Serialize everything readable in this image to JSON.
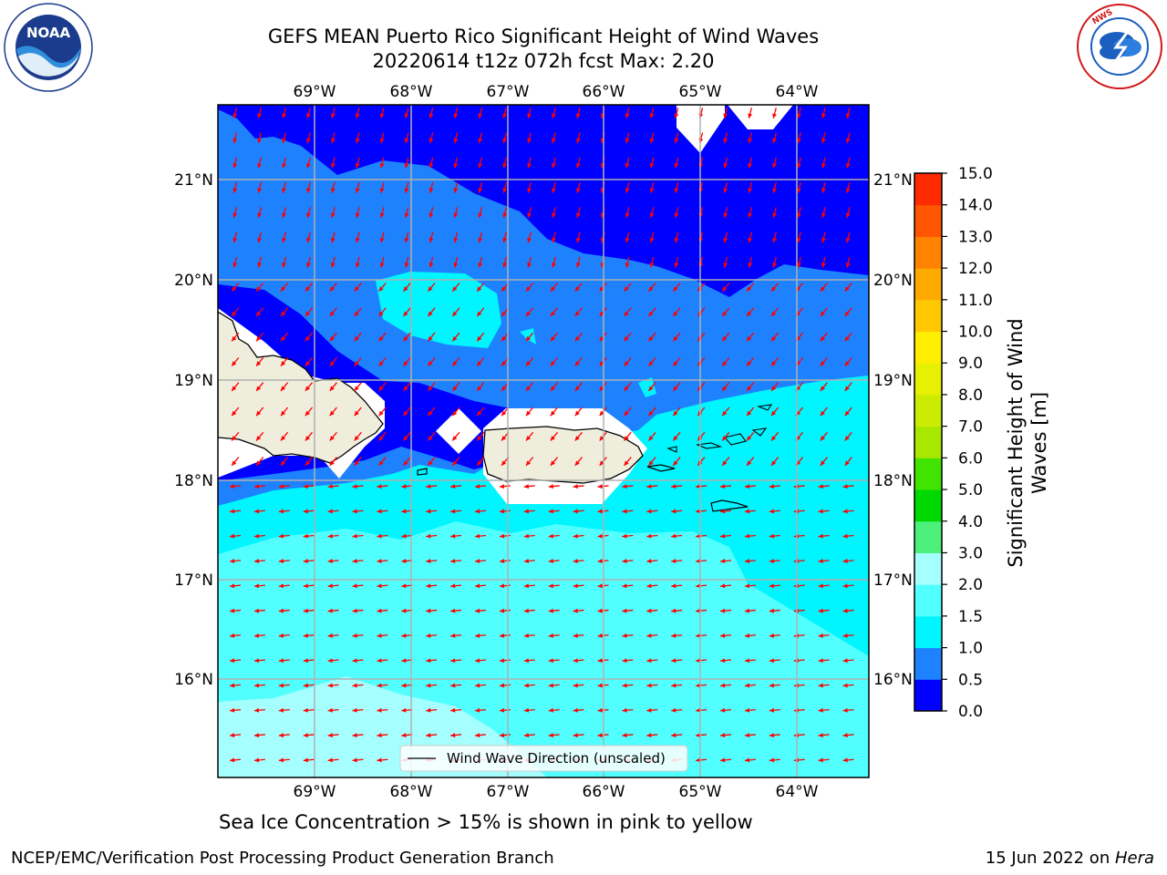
{
  "header": {
    "title_line1": "GEFS MEAN Puerto Rico Significant Height of Wind Waves",
    "title_line2": "20220614 t12z 072h fcst   Max: 2.20"
  },
  "logos": {
    "left": {
      "icon": "noaa-logo-icon",
      "text": "NOAA",
      "ring_text": "NATIONAL OCEANIC AND ATMOSPHERIC ADMINISTRATION · U.S. DEPARTMENT OF COMMERCE"
    },
    "right": {
      "icon": "nws-logo-icon",
      "ring_text": "NATIONAL WEATHER SERVICE"
    }
  },
  "map": {
    "lon_labels": [
      "69°W",
      "68°W",
      "67°W",
      "66°W",
      "65°W",
      "64°W"
    ],
    "lat_labels": [
      "21°N",
      "20°N",
      "19°N",
      "18°N",
      "17°N",
      "16°N"
    ],
    "legend_label": "Wind Wave Direction (unscaled)",
    "colors": {
      "land": "#efeedc",
      "arrow": "#ff0000",
      "grid": "#b0b0b0"
    }
  },
  "colorbar": {
    "label_line1": "Significant Height of Wind",
    "label_line2": "Waves [m]",
    "ticks": [
      "0.0",
      "0.5",
      "1.0",
      "1.5",
      "2.0",
      "3.0",
      "4.0",
      "5.0",
      "6.0",
      "7.0",
      "8.0",
      "9.0",
      "10.0",
      "11.0",
      "12.0",
      "13.0",
      "14.0",
      "15.0"
    ],
    "colors": [
      "#0000ff",
      "#1e82ff",
      "#00f5ff",
      "#52ffff",
      "#a6ffff",
      "#4cf07a",
      "#00d900",
      "#40e400",
      "#a8e800",
      "#cbec00",
      "#e6f000",
      "#ffee00",
      "#ffc800",
      "#ffaa00",
      "#ff8200",
      "#ff5500",
      "#ff2a00"
    ]
  },
  "caption": "Sea Ice Concentration > 15% is shown in pink to yellow",
  "footer": {
    "left": "NCEP/EMC/Verification Post Processing Product Generation Branch",
    "right_date": "15 Jun 2022 on ",
    "right_host": "Hera"
  }
}
